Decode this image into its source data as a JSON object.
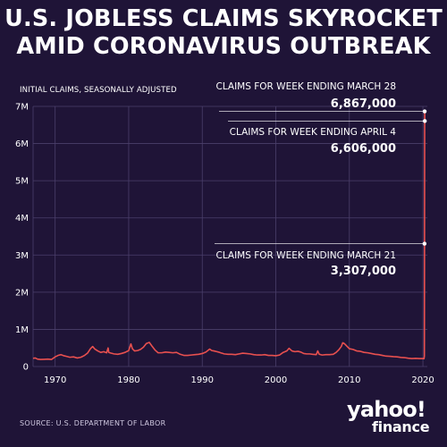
{
  "title_line1": "U.S. JOBLESS CLAIMS SKYROCKET",
  "title_line2": "AMID CORONAVIRUS OUTBREAK",
  "source_text": "SOURCE:  U.S. DEPARTMENT OF LABOR",
  "logo": {
    "line1": "yahoo!",
    "line2": "finance"
  },
  "colors": {
    "background": "#1f1437",
    "line": "#e8504f",
    "grid": "#4b3f6b",
    "text": "#ffffff"
  },
  "chart_data": {
    "type": "line",
    "title": "U.S. JOBLESS CLAIMS SKYROCKET AMID CORONAVIRUS OUTBREAK",
    "ylabel": "INITIAL CLAIMS, SEASONALLY ADJUSTED",
    "xlabel": "",
    "xlim": [
      1967,
      2020.6
    ],
    "ylim": [
      0,
      7000000
    ],
    "x_ticks": [
      1970,
      1980,
      1990,
      2000,
      2010,
      2020
    ],
    "x_tick_labels": [
      "1970",
      "1980",
      "1990",
      "2000",
      "2010",
      "2020"
    ],
    "y_ticks": [
      0,
      1000000,
      2000000,
      3000000,
      4000000,
      5000000,
      6000000,
      7000000
    ],
    "y_tick_labels": [
      "0",
      "1M",
      "2M",
      "3M",
      "4M",
      "5M",
      "6M",
      "7M"
    ],
    "grid": true,
    "series": [
      {
        "name": "",
        "x": [
          1967.0,
          1967.3,
          1967.6,
          1968.0,
          1968.5,
          1969.0,
          1969.5,
          1970.0,
          1970.4,
          1970.8,
          1971.2,
          1971.6,
          1972.0,
          1972.5,
          1973.0,
          1973.5,
          1974.0,
          1974.4,
          1974.8,
          1975.1,
          1975.4,
          1975.8,
          1976.2,
          1976.6,
          1977.0,
          1977.2,
          1977.3,
          1977.6,
          1978.0,
          1978.5,
          1979.0,
          1979.5,
          1980.0,
          1980.3,
          1980.5,
          1980.8,
          1981.2,
          1981.6,
          1982.0,
          1982.4,
          1982.8,
          1983.2,
          1983.6,
          1984.0,
          1984.5,
          1985.0,
          1985.5,
          1986.0,
          1986.5,
          1987.0,
          1987.5,
          1988.0,
          1988.5,
          1989.0,
          1989.5,
          1990.0,
          1990.5,
          1991.0,
          1991.3,
          1991.6,
          1992.0,
          1992.2,
          1992.5,
          1993.0,
          1993.5,
          1994.0,
          1994.5,
          1995.0,
          1995.5,
          1996.0,
          1996.5,
          1997.0,
          1997.5,
          1998.0,
          1998.5,
          1999.0,
          1999.5,
          2000.0,
          2000.5,
          2001.0,
          2001.5,
          2001.8,
          2002.2,
          2002.6,
          2003.0,
          2003.4,
          2003.8,
          2004.2,
          2004.6,
          2005.0,
          2005.5,
          2005.7,
          2005.9,
          2006.3,
          2006.8,
          2007.3,
          2007.8,
          2008.2,
          2008.6,
          2008.9,
          2009.1,
          2009.3,
          2009.6,
          2010.0,
          2010.5,
          2011.0,
          2011.5,
          2012.0,
          2012.5,
          2013.0,
          2013.5,
          2014.0,
          2014.5,
          2015.0,
          2015.5,
          2016.0,
          2016.5,
          2017.0,
          2017.5,
          2018.0,
          2018.5,
          2019.0,
          2019.5,
          2019.9,
          2020.15,
          2020.2,
          2020.22,
          2020.24,
          2020.26
        ],
        "y": [
          220000,
          230000,
          200000,
          190000,
          195000,
          200000,
          190000,
          260000,
          300000,
          320000,
          290000,
          270000,
          250000,
          260000,
          230000,
          250000,
          300000,
          360000,
          480000,
          540000,
          470000,
          420000,
          380000,
          400000,
          370000,
          500000,
          380000,
          360000,
          340000,
          330000,
          350000,
          380000,
          430000,
          610000,
          480000,
          420000,
          430000,
          460000,
          520000,
          620000,
          650000,
          540000,
          440000,
          370000,
          370000,
          390000,
          380000,
          370000,
          380000,
          330000,
          300000,
          300000,
          310000,
          320000,
          330000,
          350000,
          390000,
          470000,
          430000,
          420000,
          400000,
          390000,
          370000,
          340000,
          330000,
          330000,
          320000,
          340000,
          360000,
          350000,
          340000,
          320000,
          310000,
          310000,
          320000,
          300000,
          300000,
          290000,
          310000,
          380000,
          420000,
          490000,
          420000,
          400000,
          410000,
          390000,
          350000,
          340000,
          340000,
          330000,
          320000,
          420000,
          330000,
          310000,
          320000,
          320000,
          330000,
          380000,
          460000,
          540000,
          640000,
          620000,
          560000,
          480000,
          460000,
          420000,
          410000,
          380000,
          370000,
          350000,
          330000,
          320000,
          300000,
          280000,
          275000,
          265000,
          260000,
          245000,
          240000,
          225000,
          215000,
          220000,
          215000,
          215000,
          211000,
          281000,
          3307000,
          6867000,
          6606000
        ]
      }
    ],
    "annotations": [
      {
        "label": "CLAIMS FOR WEEK ENDING MARCH 28",
        "value": "6,867,000",
        "x": 2020.24,
        "y": 6867000
      },
      {
        "label": "CLAIMS FOR WEEK ENDING APRIL 4",
        "value": "6,606,000",
        "x": 2020.26,
        "y": 6606000
      },
      {
        "label": "CLAIMS FOR WEEK ENDING MARCH 21",
        "value": "3,307,000",
        "x": 2020.22,
        "y": 3307000
      }
    ]
  }
}
